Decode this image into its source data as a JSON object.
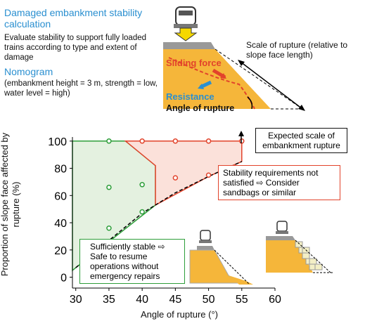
{
  "chart_data": {
    "type": "scatter",
    "heading": "Damaged embankment stability calculation",
    "description": "Evaluate stability to support fully loaded trains according to type and extent of damage",
    "subheading": "Nomogram",
    "conditions": "(embankment height = 3 m, strength = low, water level = high)",
    "diagram_labels": {
      "scale": "Scale of rupture (relative to slope face length)",
      "sliding": "Sliding force",
      "resistance": "Resistance",
      "angle": "Angle of rupture"
    },
    "xlabel": "Angle of rupture (°)",
    "ylabel": "Proportion of slope face affected by rupture (%)",
    "xlim": [
      29.5,
      60
    ],
    "xticks": [
      30,
      35,
      40,
      45,
      50,
      55,
      60
    ],
    "ylim": [
      -8,
      103
    ],
    "yticks": [
      0,
      20,
      40,
      60,
      80,
      100
    ],
    "regions": [
      {
        "color": "#2e9e3a",
        "fill": "#e4f1e0",
        "x": [
          29.5,
          37.5,
          42,
          42,
          29.5
        ],
        "y": [
          100,
          100,
          82,
          53,
          5
        ]
      },
      {
        "color": "#e2432b",
        "fill": "#fbe1da",
        "x": [
          37.5,
          55,
          55,
          50,
          42,
          42
        ],
        "y": [
          100,
          100,
          85,
          74,
          53,
          82
        ]
      }
    ],
    "boundary": {
      "x": [
        30,
        35,
        40,
        42,
        45,
        50,
        55
      ],
      "y": [
        7,
        27,
        47,
        53,
        62,
        74,
        85
      ]
    },
    "series": [
      {
        "color": "#2e9e3a",
        "x": [
          35,
          35,
          35,
          40,
          40
        ],
        "values": [
          100,
          66,
          36,
          68,
          48
        ]
      },
      {
        "color": "#e2432b",
        "x": [
          40,
          45,
          50,
          55,
          45,
          50
        ],
        "values": [
          100,
          100,
          100,
          100,
          73,
          75
        ]
      }
    ],
    "annotations": {
      "expected": "Expected scale of embankment rupture",
      "unstable": "Stability requirements not satisfied ⇨ Consider sandbags or similar",
      "stable": "Sufficiently stable ⇨ Safe to resume operations without emergency repairs"
    }
  }
}
